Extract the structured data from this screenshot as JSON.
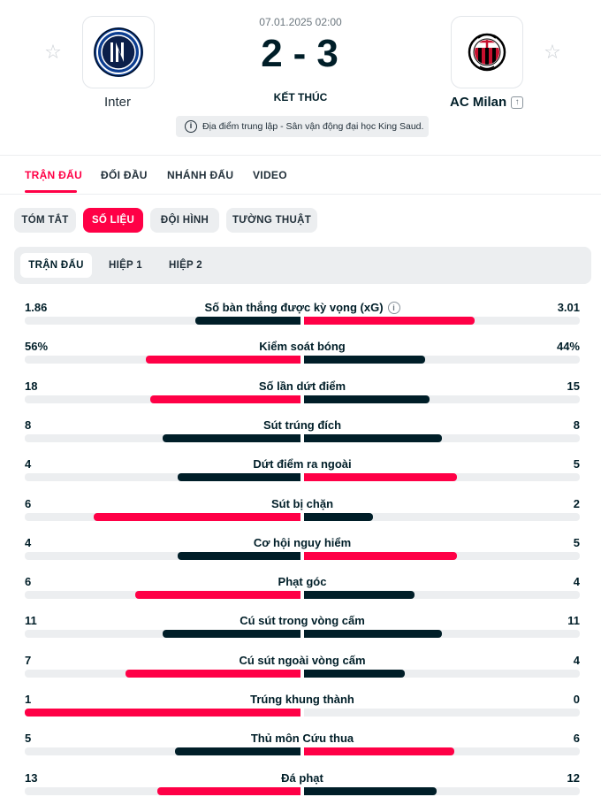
{
  "match": {
    "datetime": "07.01.2025 02:00",
    "home_score": "2",
    "separator": "-",
    "away_score": "3",
    "status": "KẾT THÚC",
    "venue": "Địa điểm trung lập - Sân vận động đại học King Saud.",
    "home_team": "Inter",
    "away_team": "AC Milan",
    "away_promo_icon": "arrow-up-box-icon"
  },
  "colors": {
    "accent": "#ff0046",
    "dark": "#001e28",
    "track": "#eceef0"
  },
  "main_tabs": [
    "TRẬN ĐẤU",
    "ĐỐI ĐẦU",
    "NHÁNH ĐẤU",
    "VIDEO"
  ],
  "sub_tabs": [
    "TÓM TẮT",
    "SỐ LIỆU",
    "ĐỘI HÌNH",
    "TƯỜNG THUẬT"
  ],
  "periods": [
    "TRẬN ĐẤU",
    "HIỆP 1",
    "HIỆP 2"
  ],
  "stats": [
    {
      "label": "Số bàn thắng được kỳ vọng (xG)",
      "home": "1.86",
      "away": "3.01",
      "home_frac": 0.382,
      "away_frac": 0.618,
      "info": true
    },
    {
      "label": "Kiểm soát bóng",
      "home": "56%",
      "away": "44%",
      "home_frac": 0.56,
      "away_frac": 0.44
    },
    {
      "label": "Số lần dứt điểm",
      "home": "18",
      "away": "15",
      "home_frac": 0.545,
      "away_frac": 0.455
    },
    {
      "label": "Sút trúng đích",
      "home": "8",
      "away": "8",
      "home_frac": 0.5,
      "away_frac": 0.5
    },
    {
      "label": "Dứt điểm ra ngoài",
      "home": "4",
      "away": "5",
      "home_frac": 0.444,
      "away_frac": 0.556
    },
    {
      "label": "Sút bị chặn",
      "home": "6",
      "away": "2",
      "home_frac": 0.75,
      "away_frac": 0.25
    },
    {
      "label": "Cơ hội nguy hiểm",
      "home": "4",
      "away": "5",
      "home_frac": 0.444,
      "away_frac": 0.556
    },
    {
      "label": "Phạt góc",
      "home": "6",
      "away": "4",
      "home_frac": 0.6,
      "away_frac": 0.4
    },
    {
      "label": "Cú sút trong vòng cấm",
      "home": "11",
      "away": "11",
      "home_frac": 0.5,
      "away_frac": 0.5
    },
    {
      "label": "Cú sút ngoài vòng cấm",
      "home": "7",
      "away": "4",
      "home_frac": 0.636,
      "away_frac": 0.364
    },
    {
      "label": "Trúng khung thành",
      "home": "1",
      "away": "0",
      "home_frac": 1.0,
      "away_frac": 0.0
    },
    {
      "label": "Thủ môn Cứu thua",
      "home": "5",
      "away": "6",
      "home_frac": 0.455,
      "away_frac": 0.545
    },
    {
      "label": "Đá phạt",
      "home": "13",
      "away": "12",
      "home_frac": 0.52,
      "away_frac": 0.48
    }
  ]
}
